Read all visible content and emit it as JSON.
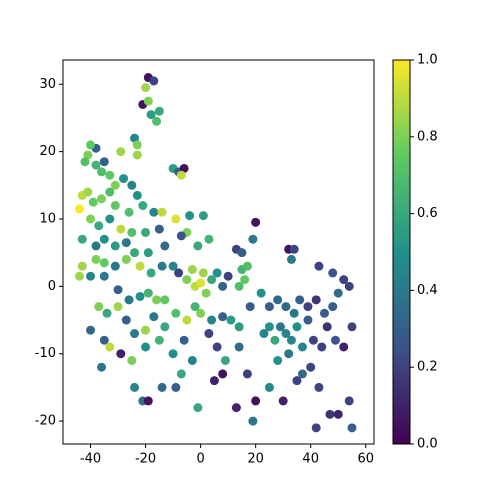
{
  "chart_data": {
    "type": "scatter",
    "x": [
      -19,
      -17,
      -20,
      -21,
      -19,
      -18,
      -15,
      -16,
      -24,
      -23,
      -23,
      -38,
      -40,
      -41,
      -42,
      -38,
      -35,
      -33,
      -36,
      -29,
      -31,
      -28,
      -25,
      -10,
      -8,
      -6,
      -7,
      -43,
      -41,
      -39,
      -36,
      -33,
      -31,
      -23,
      -21,
      -26,
      -17,
      -14,
      -9,
      -4,
      1,
      -44,
      -40,
      -37,
      -33,
      -29,
      -25,
      -20,
      -15,
      -5,
      -43,
      -38,
      -35,
      -31,
      -27,
      -24,
      -19,
      -13,
      -7,
      -1,
      3,
      13,
      15,
      20,
      19,
      32,
      34,
      33,
      -43,
      -38,
      -35,
      -31,
      -27,
      -22,
      -18,
      -14,
      -10,
      -8,
      -5,
      -3,
      -2,
      0,
      1,
      2,
      4,
      6,
      8,
      10,
      15,
      16,
      17,
      14,
      -44,
      -40,
      -35,
      -30,
      -26,
      -22,
      -19,
      -16,
      -13,
      -37,
      -34,
      -30,
      -27,
      -24,
      -20,
      -17,
      -13,
      -9,
      -5,
      -2,
      0,
      4,
      8,
      11,
      14,
      18,
      22,
      25,
      28,
      31,
      34,
      36,
      39,
      42,
      45,
      48,
      43,
      48,
      52,
      54,
      50,
      46,
      -40,
      -35,
      -33,
      -29,
      -25,
      -20,
      -15,
      -10,
      -6,
      -3,
      3,
      6,
      9,
      14,
      17,
      23,
      25,
      27,
      29,
      31,
      33,
      35,
      37,
      32,
      28,
      39,
      41,
      44,
      49,
      52,
      55,
      -36,
      -24,
      -21,
      -19,
      -14,
      -9,
      -7,
      5,
      8,
      -1,
      13,
      19,
      20,
      25,
      30,
      35,
      40,
      43,
      47,
      50,
      42,
      55,
      54,
      37
    ],
    "values": [
      31,
      30.5,
      29.5,
      27,
      27.5,
      25.5,
      26,
      24.5,
      22,
      21,
      19.5,
      20.5,
      21,
      19.5,
      18.5,
      18,
      18.5,
      16.5,
      17,
      20,
      15,
      16,
      15,
      17.5,
      17,
      17.5,
      16.5,
      13.5,
      14,
      12.5,
      13,
      14,
      12,
      13.5,
      12,
      11,
      11,
      11,
      10,
      10.5,
      10.5,
      11.5,
      10,
      9,
      10,
      8.5,
      8,
      8,
      8.5,
      8,
      7,
      6,
      7,
      6,
      6.5,
      5,
      5,
      6,
      7.5,
      6,
      7,
      5.5,
      5,
      9.5,
      7,
      5.5,
      5.5,
      4,
      3,
      4,
      3.5,
      3,
      4,
      3,
      2,
      3,
      3,
      2,
      1,
      2.5,
      0,
      0.5,
      2,
      -1,
      1,
      2,
      0,
      1.5,
      2.5,
      1,
      3,
      0,
      1.5,
      1.5,
      1.5,
      -0.5,
      -2,
      -1.5,
      -1,
      -2,
      -2,
      -3,
      -4,
      -3,
      -5,
      -7,
      -6.5,
      -4.5,
      -6,
      -4,
      -5,
      -3,
      -4,
      -5,
      -4.5,
      -5,
      -6,
      -3,
      -1,
      -3,
      -2,
      -3,
      -4,
      -2,
      -3,
      -2,
      -4,
      -3,
      3,
      2,
      1,
      0,
      -1,
      -6,
      -6.5,
      -8,
      -9,
      -10,
      -11,
      -9,
      -8,
      -10,
      -8,
      -11,
      -7,
      -9,
      -11,
      -9,
      -13,
      -7,
      -6,
      -8,
      -6,
      -7,
      -8,
      -6,
      -9,
      -10,
      -11,
      -5,
      -8,
      -9,
      -8,
      -9,
      -6,
      -12,
      -15,
      -17,
      -17,
      -15,
      -15,
      -13,
      -14,
      -13,
      -18,
      -18,
      -20,
      -17,
      -15,
      -17,
      -14,
      -12,
      -15,
      -19,
      -19,
      -21,
      -21,
      -17,
      -13
    ],
    "color_values": [
      0.05,
      0.2,
      0.85,
      0.05,
      0.8,
      0.55,
      0.6,
      0.7,
      0.45,
      0.8,
      0.85,
      0.3,
      0.75,
      0.8,
      0.7,
      0.65,
      0.3,
      0.75,
      0.7,
      0.85,
      0.8,
      0.5,
      0.45,
      0.55,
      0.3,
      0.05,
      0.9,
      0.9,
      0.85,
      0.75,
      0.8,
      0.7,
      0.75,
      0.5,
      0.6,
      0.7,
      0.45,
      0.9,
      0.95,
      0.5,
      0.55,
      1.0,
      0.8,
      0.6,
      0.5,
      0.9,
      0.7,
      0.6,
      0.3,
      0.8,
      0.6,
      0.4,
      0.5,
      0.55,
      0.4,
      0.6,
      0.55,
      0.35,
      0.25,
      0.6,
      0.65,
      0.2,
      0.3,
      0.05,
      0.4,
      0.05,
      0.2,
      0.4,
      0.85,
      0.8,
      0.75,
      0.4,
      0.8,
      0.9,
      0.6,
      0.4,
      0.45,
      0.2,
      0.8,
      0.85,
      0.9,
      0.95,
      0.85,
      0.8,
      0.6,
      0.5,
      0.3,
      0.2,
      0.65,
      0.75,
      0.7,
      0.7,
      0.85,
      0.45,
      0.4,
      0.3,
      0.4,
      0.5,
      0.65,
      0.8,
      0.75,
      0.8,
      0.6,
      0.85,
      0.3,
      0.4,
      0.85,
      0.4,
      0.6,
      0.7,
      0.9,
      0.65,
      0.8,
      0.45,
      0.3,
      0.55,
      0.55,
      0.3,
      0.5,
      0.3,
      0.35,
      0.35,
      0.4,
      0.3,
      0.2,
      0.15,
      0.3,
      0.3,
      0.2,
      0.25,
      0.2,
      0.2,
      0.35,
      0.15,
      0.35,
      0.3,
      0.9,
      0.1,
      0.8,
      0.5,
      0.65,
      0.5,
      0.3,
      0.45,
      0.2,
      0.2,
      0.6,
      0.35,
      0.2,
      0.45,
      0.5,
      0.6,
      0.4,
      0.45,
      0.45,
      0.5,
      0.45,
      0.4,
      0.5,
      0.3,
      0.2,
      0.2,
      0.25,
      0.1,
      0.2,
      0.4,
      0.45,
      0.35,
      0.05,
      0.35,
      0.3,
      0.6,
      0.1,
      0.05,
      0.6,
      0.1,
      0.4,
      0.05,
      0.45,
      0.1,
      0.2,
      0.2,
      0.2,
      0.15,
      0.1,
      0.2,
      0.3,
      0.2,
      0.35
    ],
    "xlim": [
      -50,
      63
    ],
    "ylim": [
      -23.4,
      33.6
    ],
    "xticks": [
      -40,
      -20,
      0,
      20,
      40,
      60
    ],
    "yticks": [
      -20,
      -10,
      0,
      10,
      20,
      30
    ],
    "colormap": "viridis",
    "clim": [
      0,
      1
    ],
    "cticks": [
      {
        "value": 0,
        "label": "0.0"
      },
      0.2,
      0.4,
      0.6,
      0.8,
      {
        "value": 1,
        "label": "1.0"
      }
    ]
  }
}
